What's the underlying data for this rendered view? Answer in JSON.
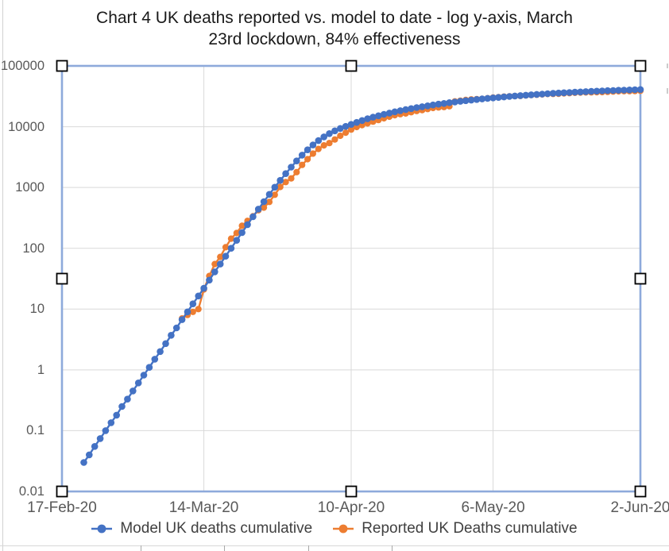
{
  "title": "Chart 4 UK deaths reported vs. model to date - log y-axis, March 23rd lockdown, 84% effectiveness",
  "title_lines": [
    "Chart 4 UK deaths reported vs. model to date - log y-axis, March",
    "23rd lockdown, 84% effectiveness"
  ],
  "colors": {
    "model_series": "#4472C4",
    "reported_series": "#ED7D31",
    "selection_border": "#8EAADB",
    "gridline": "#D9D9D9",
    "axis_label_text": "#595959",
    "legend_text": "#404040",
    "title_text": "#1a1a1a",
    "handle_fill": "#FFFFFF",
    "handle_border": "#000000"
  },
  "y_axis": {
    "scale": "log",
    "min": 0.01,
    "max": 100000,
    "ticks": [
      "100000",
      "10000",
      "1000",
      "100",
      "10",
      "1",
      "0.1",
      "0.01"
    ]
  },
  "x_axis": {
    "ticks": [
      {
        "label": "17-Feb-20",
        "date": "2020-02-17"
      },
      {
        "label": "14-Mar-20",
        "date": "2020-03-14"
      },
      {
        "label": "10-Apr-20",
        "date": "2020-04-10"
      },
      {
        "label": "6-May-20",
        "date": "2020-05-06"
      },
      {
        "label": "2-Jun-20",
        "date": "2020-06-02"
      }
    ]
  },
  "legend": [
    {
      "label": "Model UK deaths cumulative",
      "color": "#4472C4"
    },
    {
      "label": "Reported UK Deaths cumulative",
      "color": "#ED7D31"
    }
  ],
  "chart_data": {
    "type": "line",
    "title": "Chart 4 UK deaths reported vs. model to date - log y-axis, March 23rd lockdown, 84% effectiveness",
    "y_scale": "log",
    "ylim": [
      0.01,
      100000
    ],
    "y_tick_values": [
      100000,
      10000,
      1000,
      100,
      10,
      1,
      0.1,
      0.01
    ],
    "x_start": "2020-02-17",
    "x_end": "2020-06-02",
    "x_unit": "day",
    "grid": true,
    "legend_position": "bottom",
    "marker": "circle",
    "series": [
      {
        "name": "Model UK deaths cumulative",
        "color": "#4472C4",
        "start_date": "2020-02-21",
        "frequency": "daily",
        "values": [
          0.03,
          0.04,
          0.055,
          0.074,
          0.1,
          0.135,
          0.18,
          0.25,
          0.33,
          0.45,
          0.61,
          0.82,
          1.1,
          1.5,
          2.0,
          2.7,
          3.7,
          4.9,
          6.7,
          9.0,
          12.2,
          16.4,
          22,
          30,
          41,
          55,
          74,
          100,
          135,
          181,
          245,
          330,
          440,
          585,
          770,
          1010,
          1310,
          1690,
          2160,
          2730,
          3400,
          4160,
          5000,
          5900,
          6800,
          7700,
          8550,
          9350,
          10100,
          10890,
          11760,
          12630,
          13480,
          14320,
          15150,
          15960,
          16770,
          17560,
          18340,
          19110,
          19860,
          20610,
          21340,
          22060,
          22770,
          23460,
          24150,
          24820,
          25480,
          26130,
          26760,
          27390,
          28000,
          28600,
          29190,
          29760,
          30330,
          30880,
          31420,
          31950,
          32460,
          32970,
          33460,
          33940,
          34410,
          34860,
          35310,
          35740,
          36160,
          36570,
          36960,
          37350,
          37720,
          38080,
          38430,
          38760,
          39090,
          39400,
          39700,
          39990,
          40260,
          40530,
          40780
        ]
      },
      {
        "name": "Reported UK Deaths cumulative",
        "color": "#ED7D31",
        "start_date": "2020-03-10",
        "frequency": "daily",
        "values": [
          7,
          8,
          9,
          10,
          21,
          35,
          55,
          72,
          104,
          144,
          178,
          234,
          282,
          336,
          422,
          466,
          580,
          760,
          1020,
          1230,
          1410,
          1790,
          2350,
          2920,
          3610,
          4310,
          4930,
          5370,
          6160,
          7100,
          7980,
          8960,
          9880,
          10610,
          11330,
          12110,
          12870,
          13730,
          14580,
          15460,
          16060,
          16510,
          17340,
          18100,
          18740,
          19510,
          20320,
          20730,
          21090,
          21680,
          26100,
          26770,
          27510,
          28130,
          28450,
          28730,
          29430,
          30080,
          30620,
          31240,
          31590,
          31860,
          32070,
          32690,
          33190,
          33610,
          34000,
          34470,
          34640,
          34800,
          35340,
          35700,
          36040,
          36390,
          36680,
          36790,
          36910,
          37050,
          37460,
          37840,
          38160,
          38380,
          38490,
          38570,
          39050
        ]
      }
    ]
  }
}
